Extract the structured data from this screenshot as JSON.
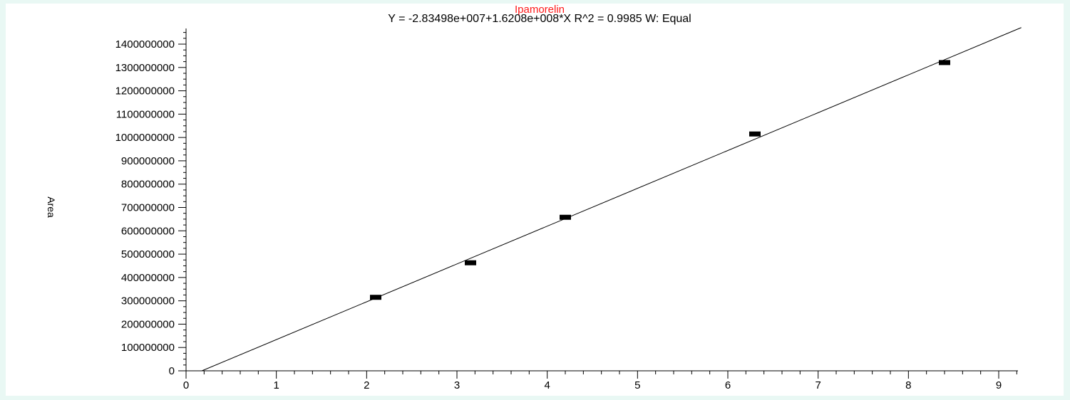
{
  "chart_data": {
    "type": "scatter",
    "title": "Ipamorelin",
    "subtitle": "Y = -2.83498e+007+1.6208e+008*X   R^2 = 0.9985   W: Equal",
    "xlabel": "",
    "ylabel": "Area",
    "xlim": [
      0,
      9.25
    ],
    "ylim": [
      0,
      1450000000
    ],
    "xticks": [
      0,
      1,
      2,
      3,
      4,
      5,
      6,
      7,
      8,
      9
    ],
    "xtick_labels": [
      "0",
      "1",
      "2",
      "3",
      "4",
      "5",
      "6",
      "7",
      "8",
      "9"
    ],
    "yticks": [
      0,
      100000000,
      200000000,
      300000000,
      400000000,
      500000000,
      600000000,
      700000000,
      800000000,
      900000000,
      1000000000,
      1100000000,
      1200000000,
      1300000000,
      1400000000
    ],
    "ytick_labels": [
      "0",
      "100000000",
      "200000000",
      "300000000",
      "400000000",
      "500000000",
      "600000000",
      "700000000",
      "800000000",
      "900000000",
      "1000000000",
      "1100000000",
      "1200000000",
      "1300000000",
      "1400000000"
    ],
    "series": [
      {
        "x": [
          2.1,
          3.15,
          4.2,
          6.3,
          8.4
        ],
        "y": [
          315000000,
          463000000,
          658000000,
          1015000000,
          1321000000
        ]
      }
    ],
    "fit": {
      "intercept": -28349800,
      "slope": 162080000,
      "x_start": 0.175,
      "x_end": 9.25
    },
    "grid": false,
    "colors": {
      "title": "#ff1a1a",
      "text": "#000000",
      "line": "#000000",
      "marker": "#000000",
      "background": "#e9f8f4"
    }
  }
}
